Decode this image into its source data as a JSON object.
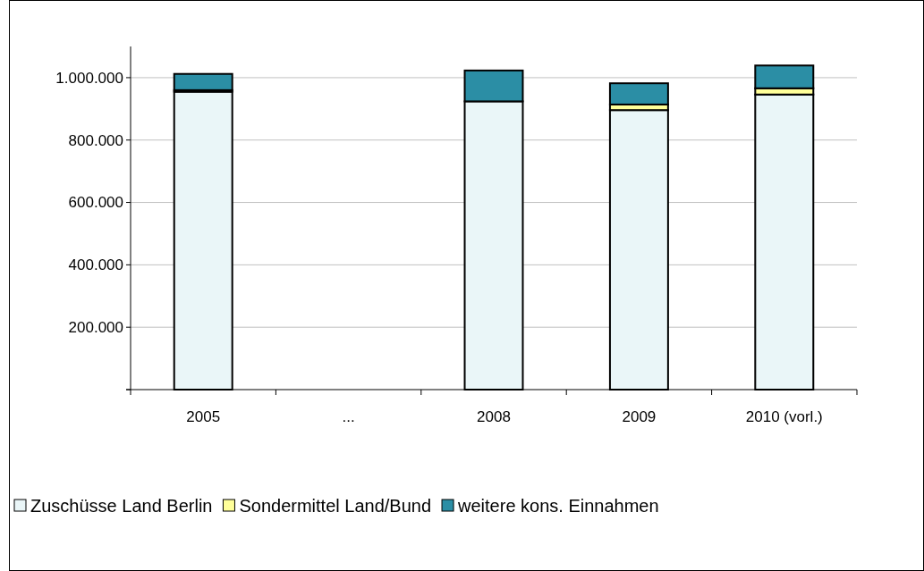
{
  "chart_data": {
    "type": "bar",
    "stacked": true,
    "categories": [
      "2005",
      "...",
      "2008",
      "2009",
      "2010 (vorl.)"
    ],
    "series": [
      {
        "name": "Zuschüsse Land Berlin",
        "color": "#eaf6f8",
        "values": [
          955000,
          null,
          924000,
          896000,
          946000
        ]
      },
      {
        "name": "Sondermittel Land/Bund",
        "color": "#ffff99",
        "values": [
          5000,
          null,
          null,
          18000,
          20000
        ]
      },
      {
        "name": "weitere kons. Einnahmen",
        "color": "#2b8ea5",
        "values": [
          52000,
          null,
          99000,
          68000,
          73000
        ]
      }
    ],
    "ylim": [
      0,
      1100000
    ],
    "yticks": [
      {
        "value": 0,
        "label": null
      },
      {
        "value": 200000,
        "label": "200.000"
      },
      {
        "value": 400000,
        "label": "400.000"
      },
      {
        "value": 600000,
        "label": "600.000"
      },
      {
        "value": 800000,
        "label": "800.000"
      },
      {
        "value": 1000000,
        "label": "1.000.000"
      }
    ],
    "grid": "y",
    "legend": "bottom"
  }
}
